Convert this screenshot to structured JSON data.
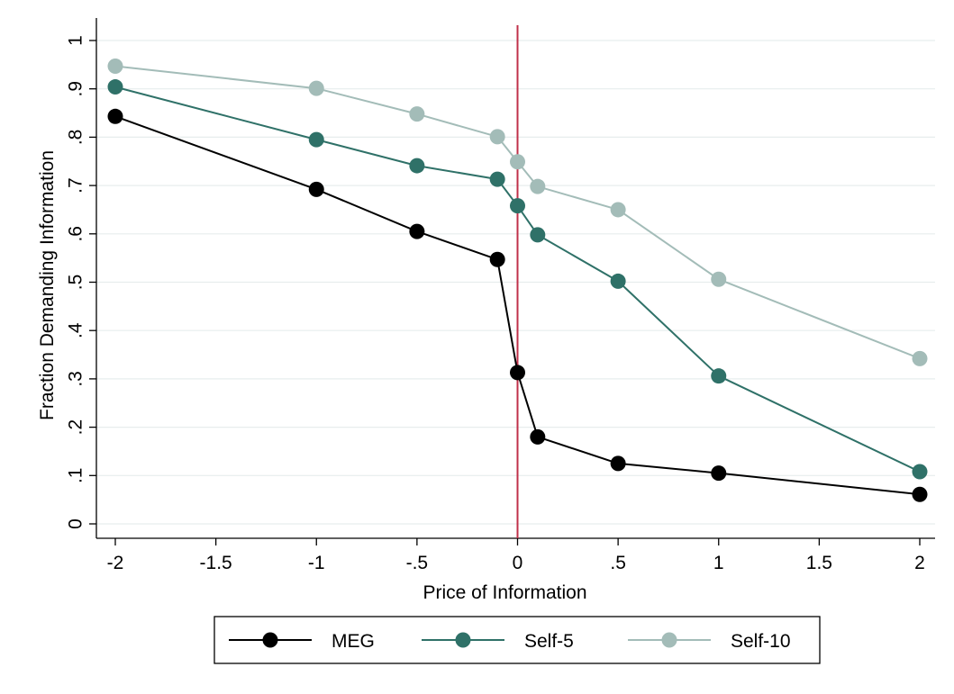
{
  "chart_data": {
    "type": "line",
    "title": "",
    "xlabel": "Price of Information",
    "ylabel": "Fraction Demanding Information",
    "xlim": [
      -2,
      2
    ],
    "ylim": [
      0,
      1
    ],
    "x_ticks": [
      "-2",
      "-1.5",
      "-1",
      "-.5",
      "0",
      ".5",
      "1",
      "1.5",
      "2"
    ],
    "y_ticks": [
      "0",
      ".1",
      ".2",
      ".3",
      ".4",
      ".5",
      ".6",
      ".7",
      ".8",
      ".9",
      "1"
    ],
    "grid": true,
    "legend_position": "bottom",
    "reference_line": {
      "x": 0,
      "color": "#c0304a"
    },
    "x": [
      -2,
      -1,
      -0.5,
      -0.1,
      0,
      0.1,
      0.5,
      1,
      2
    ],
    "series": [
      {
        "name": "MEG",
        "color": "#000000",
        "values": [
          0.843,
          0.692,
          0.605,
          0.547,
          0.313,
          0.18,
          0.125,
          0.105,
          0.061
        ]
      },
      {
        "name": "Self-5",
        "color": "#2f7168",
        "values": [
          0.904,
          0.795,
          0.741,
          0.713,
          0.658,
          0.598,
          0.502,
          0.306,
          0.108
        ]
      },
      {
        "name": "Self-10",
        "color": "#a3bcb8",
        "values": [
          0.947,
          0.901,
          0.848,
          0.801,
          0.749,
          0.698,
          0.65,
          0.506,
          0.342
        ]
      }
    ]
  }
}
